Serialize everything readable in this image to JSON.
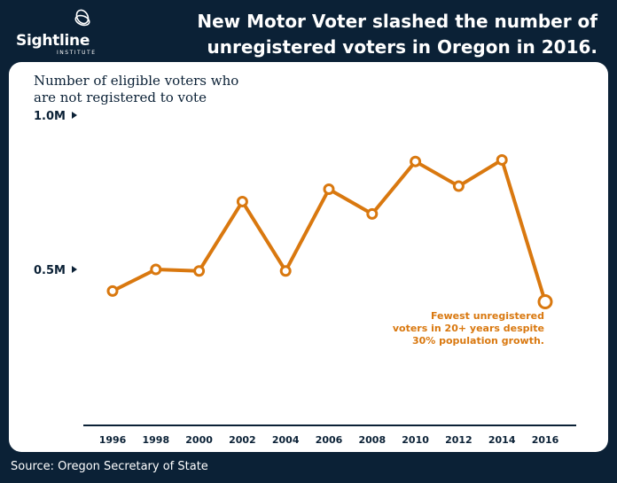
{
  "brand": {
    "name": "Sightline",
    "tagline": "INSTITUTE"
  },
  "headline": "New Motor Voter slashed the number of unregistered voters in Oregon in 2016.",
  "source": "Source: Oregon Secretary of State",
  "colors": {
    "background": "#0b2136",
    "line": "#d9780f",
    "card": "#ffffff"
  },
  "chart_data": {
    "type": "line",
    "title": "Number of eligible voters who are not registered to vote",
    "x": [
      "1996",
      "1998",
      "2000",
      "2002",
      "2004",
      "2006",
      "2008",
      "2010",
      "2012",
      "2014",
      "2016"
    ],
    "series": [
      {
        "values": [
          0.43,
          0.5,
          0.495,
          0.72,
          0.495,
          0.76,
          0.68,
          0.85,
          0.77,
          0.855,
          0.395
        ]
      }
    ],
    "y_ticks": [
      {
        "value": 1.0,
        "label": "1.0M"
      },
      {
        "value": 0.5,
        "label": "0.5M"
      }
    ],
    "ylim": [
      0,
      1.0
    ],
    "grid": false,
    "annotation": {
      "point_index": 10,
      "lines": [
        "Fewest unregistered",
        "voters in 20+ years despite",
        "30% population growth."
      ]
    }
  }
}
